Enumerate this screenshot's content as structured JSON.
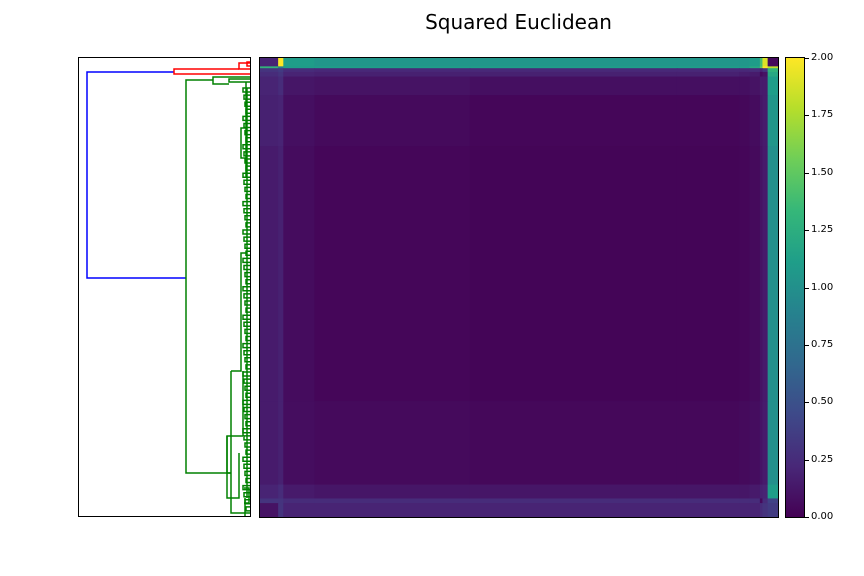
{
  "chart_data": {
    "type": "heatmap",
    "title": "Squared Euclidean",
    "colormap": "viridis",
    "colorbar": {
      "range": [
        0.0,
        2.0
      ],
      "ticks": [
        "0.00",
        "0.25",
        "0.50",
        "0.75",
        "1.00",
        "1.25",
        "1.50",
        "1.75",
        "2.00"
      ]
    },
    "row_blocks": [
      0.018,
      0.004,
      0.008,
      0.01,
      0.04,
      0.11,
      0.55,
      0.18,
      0.03,
      0.01,
      0.03
    ],
    "col_blocks": [
      0.035,
      0.01,
      0.06,
      0.3,
      0.4,
      0.12,
      0.02,
      0.02,
      0.005,
      0.01,
      0.02
    ],
    "matrix": [
      [
        0.2,
        2.0,
        1.1,
        1.05,
        1.05,
        1.05,
        1.05,
        1.1,
        1.4,
        1.9,
        0.05
      ],
      [
        1.3,
        0.8,
        1.1,
        1.1,
        1.1,
        1.1,
        1.1,
        1.2,
        1.5,
        2.0,
        1.8
      ],
      [
        0.3,
        0.35,
        0.25,
        0.22,
        0.22,
        0.22,
        0.22,
        0.25,
        0.2,
        0.3,
        1.3
      ],
      [
        0.25,
        0.3,
        0.2,
        0.18,
        0.18,
        0.18,
        0.16,
        0.15,
        0.05,
        0.1,
        1.2
      ],
      [
        0.2,
        0.25,
        0.12,
        0.1,
        0.08,
        0.08,
        0.08,
        0.1,
        0.15,
        0.15,
        1.1
      ],
      [
        0.18,
        0.2,
        0.08,
        0.05,
        0.03,
        0.03,
        0.04,
        0.06,
        0.12,
        0.15,
        1.05
      ],
      [
        0.15,
        0.18,
        0.06,
        0.03,
        0.02,
        0.02,
        0.03,
        0.05,
        0.1,
        0.14,
        1.0
      ],
      [
        0.15,
        0.18,
        0.07,
        0.05,
        0.04,
        0.04,
        0.05,
        0.07,
        0.11,
        0.15,
        1.0
      ],
      [
        0.2,
        0.25,
        0.14,
        0.12,
        0.12,
        0.12,
        0.12,
        0.14,
        0.18,
        0.2,
        1.1
      ],
      [
        0.3,
        0.3,
        0.25,
        0.25,
        0.25,
        0.25,
        0.25,
        0.25,
        0.05,
        0.25,
        0.4
      ],
      [
        0.1,
        0.3,
        0.2,
        0.2,
        0.2,
        0.2,
        0.2,
        0.2,
        0.25,
        0.3,
        0.35
      ]
    ],
    "dendrogram": {
      "orientation": "left",
      "colors": {
        "root": "#0000ff",
        "cluster_a": "#ff0000",
        "cluster_b": "#008000"
      }
    }
  }
}
